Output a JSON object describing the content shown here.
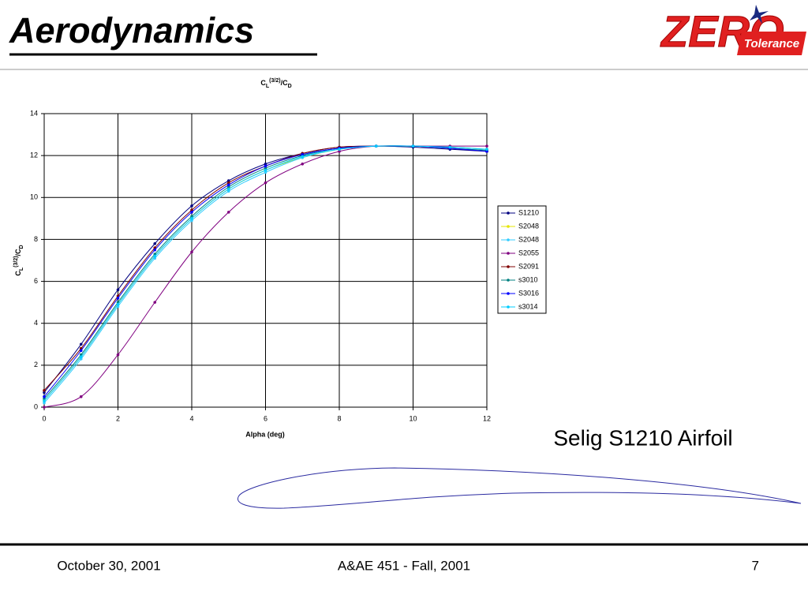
{
  "slide": {
    "heading": "Aerodynamics",
    "logo_main": "ZERO",
    "logo_sub": "Tolerance",
    "caption": "Selig S1210 Airfoil",
    "footer_left": "October 30, 2001",
    "footer_center": "A&AE 451 - Fall, 2001",
    "footer_right": "7"
  },
  "chart_data": {
    "type": "line",
    "title": [
      "C",
      "L",
      "(3/2)",
      "/C",
      "D"
    ],
    "x_label": "Alpha (deg)",
    "y_label": [
      "C",
      "L",
      "(3/2)",
      "/C",
      "D"
    ],
    "x": [
      0,
      1,
      2,
      3,
      4,
      5,
      6,
      7,
      8,
      9,
      10,
      11,
      12
    ],
    "xlim": [
      0,
      12
    ],
    "xticks": [
      0,
      2,
      4,
      6,
      8,
      10,
      12
    ],
    "ylim": [
      0,
      14
    ],
    "yticks": [
      0,
      2,
      4,
      6,
      8,
      10,
      12,
      14
    ],
    "grid": true,
    "legend": "right",
    "series": [
      {
        "name": "S1210",
        "color": "#000080",
        "values": [
          0.7,
          3.0,
          5.6,
          7.8,
          9.6,
          10.8,
          11.6,
          12.1,
          12.4,
          12.45,
          12.4,
          12.3,
          12.2
        ]
      },
      {
        "name": "S2048",
        "color": "#e6e600",
        "values": [
          0.3,
          2.4,
          4.9,
          7.2,
          9.0,
          10.4,
          11.3,
          11.9,
          12.3,
          12.45,
          12.45,
          12.4,
          12.3
        ]
      },
      {
        "name": "S2048",
        "color": "#33ccff",
        "values": [
          0.2,
          2.3,
          4.8,
          7.1,
          8.9,
          10.3,
          11.2,
          11.9,
          12.3,
          12.45,
          12.45,
          12.4,
          12.3
        ]
      },
      {
        "name": "S2055",
        "color": "#800080",
        "values": [
          0.0,
          0.5,
          2.5,
          5.0,
          7.4,
          9.3,
          10.7,
          11.6,
          12.2,
          12.45,
          12.45,
          12.45,
          12.45
        ]
      },
      {
        "name": "S2091",
        "color": "#800000",
        "values": [
          0.8,
          2.8,
          5.3,
          7.6,
          9.4,
          10.7,
          11.5,
          12.1,
          12.4,
          12.45,
          12.45,
          12.35,
          12.2
        ]
      },
      {
        "name": "s3010",
        "color": "#008080",
        "values": [
          0.4,
          2.5,
          5.0,
          7.3,
          9.1,
          10.5,
          11.4,
          12.0,
          12.35,
          12.45,
          12.45,
          12.35,
          12.25
        ]
      },
      {
        "name": "S3016",
        "color": "#0000ff",
        "values": [
          0.5,
          2.7,
          5.2,
          7.5,
          9.3,
          10.6,
          11.5,
          12.05,
          12.35,
          12.45,
          12.45,
          12.35,
          12.2
        ]
      },
      {
        "name": "s3014",
        "color": "#00ccff",
        "values": [
          0.3,
          2.4,
          4.9,
          7.2,
          9.0,
          10.4,
          11.3,
          11.95,
          12.3,
          12.45,
          12.45,
          12.4,
          12.3
        ]
      }
    ]
  }
}
